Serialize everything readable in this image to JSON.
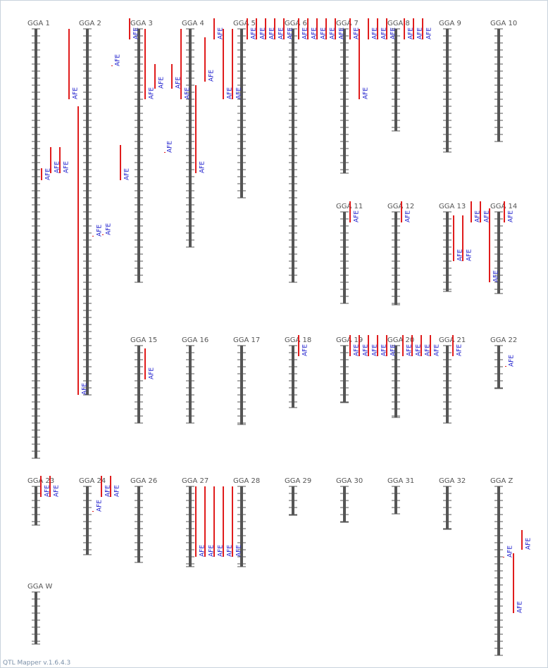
{
  "footer": "QTL Mapper v.1.6.4.3",
  "colors": {
    "chromosome": "#555555",
    "tick": "#555555",
    "qtl": "#e01c1c",
    "qtl_label": "#1a1acc",
    "name": "#555555"
  },
  "qtl_label": "AFE",
  "chromosomes": [
    {
      "name": "GGA 1",
      "col": 0,
      "row": 0,
      "len": 61
    },
    {
      "name": "GGA 2",
      "col": 1,
      "row": 0,
      "len": 52
    },
    {
      "name": "GGA 3",
      "col": 2,
      "row": 0,
      "len": 36
    },
    {
      "name": "GGA 4",
      "col": 3,
      "row": 0,
      "len": 31
    },
    {
      "name": "GGA 5",
      "col": 4,
      "row": 0,
      "len": 24
    },
    {
      "name": "GGA 6",
      "col": 5,
      "row": 0,
      "len": 36
    },
    {
      "name": "GGA 7",
      "col": 6,
      "row": 0,
      "len": 20.5
    },
    {
      "name": "GGA 8",
      "col": 7,
      "row": 0,
      "len": 14.5
    },
    {
      "name": "GGA 9",
      "col": 8,
      "row": 0,
      "len": 17.5
    },
    {
      "name": "GGA 10",
      "col": 9,
      "row": 0,
      "len": 16
    },
    {
      "name": "GGA 11",
      "col": 6,
      "row": 1,
      "len": 13
    },
    {
      "name": "GGA 12",
      "col": 7,
      "row": 1,
      "len": 13.2
    },
    {
      "name": "GGA 13",
      "col": 8,
      "row": 1,
      "len": 11.3
    },
    {
      "name": "GGA 14",
      "col": 9,
      "row": 1,
      "len": 11.6
    },
    {
      "name": "GGA 15",
      "col": 2,
      "row": 2,
      "len": 11
    },
    {
      "name": "GGA 16",
      "col": 3,
      "row": 2,
      "len": 11
    },
    {
      "name": "GGA 17",
      "col": 4,
      "row": 2,
      "len": 11.2
    },
    {
      "name": "GGA 18",
      "col": 5,
      "row": 2,
      "len": 8.8
    },
    {
      "name": "GGA 19",
      "col": 6,
      "row": 2,
      "len": 8.1
    },
    {
      "name": "GGA 20",
      "col": 7,
      "row": 2,
      "len": 10.2
    },
    {
      "name": "GGA 21",
      "col": 8,
      "row": 2,
      "len": 11
    },
    {
      "name": "GGA 22",
      "col": 9,
      "row": 2,
      "len": 6.1
    },
    {
      "name": "GGA 23",
      "col": 0,
      "row": 3,
      "len": 5.5
    },
    {
      "name": "GGA 24",
      "col": 1,
      "row": 3,
      "len": 9.7
    },
    {
      "name": "GGA 26",
      "col": 2,
      "row": 3,
      "len": 10.8
    },
    {
      "name": "GGA 27",
      "col": 3,
      "row": 3,
      "len": 11.4
    },
    {
      "name": "GGA 28",
      "col": 4,
      "row": 3,
      "len": 11.4
    },
    {
      "name": "GGA 29",
      "col": 5,
      "row": 3,
      "len": 4.1
    },
    {
      "name": "GGA 30",
      "col": 6,
      "row": 3,
      "len": 5.1
    },
    {
      "name": "GGA 31",
      "col": 7,
      "row": 3,
      "len": 3.9
    },
    {
      "name": "GGA 32",
      "col": 8,
      "row": 3,
      "len": 6.1
    },
    {
      "name": "GGA Z",
      "col": 9,
      "row": 3,
      "len": 24
    },
    {
      "name": "GGA W",
      "col": 0,
      "row": 4,
      "len": 7.4
    }
  ]
}
